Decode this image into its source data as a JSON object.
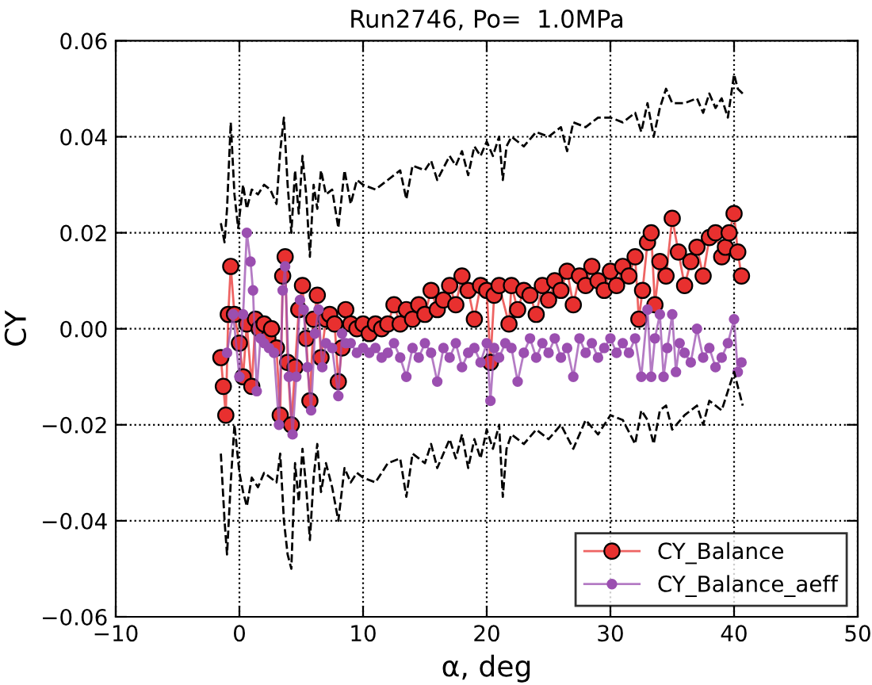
{
  "chart_data": {
    "type": "line",
    "title": "Run2746, Po=  1.0MPa",
    "xlabel": "α, deg",
    "ylabel": "CY",
    "xlim": [
      -10,
      50
    ],
    "xticks": [
      {
        "value": -10,
        "label": "−10"
      },
      0,
      10,
      20,
      30,
      40,
      50
    ],
    "ylim": [
      -0.06,
      0.06
    ],
    "yticks": [
      {
        "value": -0.06,
        "label": "−0.06"
      },
      {
        "value": -0.04,
        "label": "−0.04"
      },
      {
        "value": -0.02,
        "label": "−0.02"
      },
      {
        "value": 0,
        "label": "0.00"
      },
      {
        "value": 0.02,
        "label": "0.02"
      },
      {
        "value": 0.04,
        "label": "0.04"
      },
      {
        "value": 0.06,
        "label": "0.06"
      }
    ],
    "grid": true,
    "legend": "bottom right",
    "series": [
      {
        "name": "CY_Balance",
        "color": "#e8302f",
        "marker": "circle",
        "line_style": "solid",
        "x": [
          -1.5,
          -1.3,
          -1.1,
          -0.9,
          -0.7,
          -0.4,
          0,
          0.3,
          0.6,
          1.0,
          1.3,
          1.6,
          2.0,
          2.3,
          2.6,
          3.0,
          3.3,
          3.5,
          3.7,
          3.9,
          4.2,
          4.5,
          4.8,
          5.1,
          5.4,
          5.7,
          6.0,
          6.3,
          6.6,
          7.0,
          7.3,
          7.7,
          8.0,
          8.3,
          8.6,
          9.0,
          9.5,
          10,
          10.5,
          11,
          11.5,
          12,
          12.5,
          13,
          13.5,
          14,
          14.5,
          15,
          15.5,
          16,
          16.5,
          17,
          17.5,
          18,
          18.5,
          19,
          19.5,
          20,
          20.3,
          20.6,
          21,
          21.8,
          22,
          22.5,
          23,
          23.5,
          24,
          24.5,
          25,
          25.5,
          26,
          26.5,
          27,
          27.5,
          28,
          28.5,
          29,
          29.5,
          30,
          30.5,
          31,
          31.5,
          32,
          32.3,
          32.6,
          33,
          33.3,
          33.6,
          34,
          34.5,
          35,
          35.5,
          36,
          36.5,
          37,
          37.5,
          38,
          38.5,
          39,
          39.3,
          39.6,
          40,
          40.3,
          40.6
        ],
        "values": [
          -0.006,
          -0.012,
          -0.018,
          0.003,
          0.013,
          0.003,
          -0.003,
          -0.01,
          0.001,
          -0.012,
          0.002,
          0.0,
          0.001,
          -0.002,
          0.0,
          -0.004,
          -0.018,
          0.011,
          0.015,
          -0.007,
          -0.02,
          -0.008,
          0.004,
          0.009,
          -0.002,
          -0.015,
          0.002,
          0.007,
          -0.006,
          0.002,
          0.003,
          0.001,
          -0.011,
          -0.004,
          0.004,
          0.001,
          0.0,
          0.001,
          -0.001,
          0.001,
          0.0,
          0.001,
          0.005,
          0.001,
          0.004,
          0.002,
          0.005,
          0.003,
          0.008,
          0.004,
          0.006,
          0.009,
          0.005,
          0.011,
          0.008,
          0.002,
          0.009,
          0.008,
          -0.007,
          0.007,
          0.009,
          0.001,
          0.009,
          0.004,
          0.008,
          0.007,
          0.003,
          0.009,
          0.006,
          0.01,
          0.008,
          0.012,
          0.005,
          0.011,
          0.009,
          0.013,
          0.01,
          0.008,
          0.012,
          0.009,
          0.013,
          0.011,
          0.015,
          0.002,
          0.008,
          0.018,
          0.02,
          0.005,
          0.014,
          0.011,
          0.023,
          0.016,
          0.009,
          0.014,
          0.017,
          0.011,
          0.019,
          0.02,
          0.015,
          0.017,
          0.02,
          0.024,
          0.016,
          0.011
        ]
      },
      {
        "name": "CY_Balance_aeff",
        "color": "#9b4fb0",
        "marker": "circle",
        "line_style": "solid",
        "x": [
          -1.0,
          -0.5,
          0,
          0.3,
          0.6,
          0.9,
          1.1,
          1.4,
          1.7,
          2.0,
          2.4,
          2.8,
          3.2,
          3.5,
          3.7,
          4.0,
          4.3,
          4.6,
          4.9,
          5.2,
          5.5,
          5.8,
          6.1,
          6.4,
          6.7,
          7.0,
          7.5,
          8.0,
          8.3,
          8.6,
          9,
          9.5,
          10,
          10.5,
          11,
          11.5,
          12,
          12.5,
          13,
          13.5,
          14,
          14.5,
          15,
          15.5,
          16,
          16.5,
          17,
          17.5,
          18,
          18.5,
          19,
          19.5,
          20,
          20.3,
          20.6,
          21,
          21.5,
          22,
          22.5,
          23,
          23.5,
          24,
          24.5,
          25,
          25.5,
          26,
          26.5,
          27,
          27.5,
          28,
          28.5,
          29,
          29.5,
          30,
          30.5,
          31,
          31.5,
          32,
          32.5,
          33,
          33.3,
          33.6,
          34,
          34.3,
          34.6,
          35,
          35.3,
          35.6,
          36,
          36.5,
          37,
          37.5,
          38,
          38.5,
          39,
          39.5,
          40,
          40.3,
          40.6
        ],
        "values": [
          -0.005,
          0.003,
          -0.01,
          0.003,
          0.02,
          0.014,
          0.008,
          -0.013,
          -0.002,
          -0.003,
          -0.004,
          -0.005,
          -0.02,
          0.008,
          0.013,
          -0.01,
          -0.022,
          -0.01,
          0.006,
          0.004,
          -0.008,
          -0.017,
          -0.001,
          0.004,
          -0.008,
          -0.003,
          -0.004,
          -0.014,
          -0.001,
          -0.003,
          -0.003,
          -0.005,
          -0.004,
          -0.005,
          -0.004,
          -0.006,
          -0.005,
          -0.003,
          -0.006,
          -0.01,
          -0.004,
          -0.006,
          -0.003,
          -0.005,
          -0.011,
          -0.004,
          -0.006,
          -0.003,
          -0.008,
          -0.005,
          -0.004,
          -0.007,
          -0.003,
          -0.015,
          -0.004,
          -0.006,
          -0.003,
          -0.004,
          -0.011,
          -0.005,
          -0.002,
          -0.006,
          -0.003,
          -0.005,
          -0.002,
          -0.006,
          -0.004,
          -0.01,
          -0.002,
          -0.005,
          -0.003,
          -0.006,
          -0.004,
          -0.002,
          -0.005,
          -0.003,
          -0.005,
          -0.002,
          -0.01,
          0.004,
          -0.01,
          -0.002,
          0.003,
          -0.01,
          -0.004,
          0.003,
          -0.009,
          -0.003,
          -0.005,
          -0.007,
          0.0,
          -0.006,
          -0.004,
          -0.008,
          -0.006,
          -0.003,
          0.002,
          -0.009,
          -0.007
        ]
      },
      {
        "color": "#000000",
        "marker": "none",
        "line_style": "dashed",
        "x": [
          -1.5,
          -1.2,
          -1,
          -0.7,
          -0.4,
          -0.1,
          0.3,
          0.6,
          1.0,
          1.5,
          2,
          2.5,
          3,
          3.3,
          3.6,
          3.9,
          4.2,
          4.5,
          4.8,
          5.1,
          5.4,
          5.7,
          6,
          6.3,
          6.6,
          7,
          7.5,
          8,
          8.5,
          9,
          9.5,
          10,
          11,
          12,
          13,
          13.5,
          14,
          15,
          15.5,
          16,
          17,
          17.5,
          18,
          18.5,
          19,
          19.5,
          20,
          20.5,
          21,
          21.3,
          21.6,
          22,
          23,
          24,
          25,
          26,
          26.5,
          27,
          28,
          29,
          30,
          31,
          32,
          32.5,
          33,
          33.5,
          34,
          34.5,
          35,
          36,
          37,
          37.5,
          38,
          38.5,
          39,
          39.5,
          40,
          40.3,
          40.7
        ],
        "values": [
          0.022,
          0.018,
          0.025,
          0.043,
          0.028,
          0.021,
          0.03,
          0.025,
          0.029,
          0.028,
          0.03,
          0.029,
          0.026,
          0.037,
          0.044,
          0.03,
          0.02,
          0.033,
          0.024,
          0.036,
          0.028,
          0.015,
          0.03,
          0.025,
          0.033,
          0.028,
          0.029,
          0.021,
          0.033,
          0.026,
          0.031,
          0.03,
          0.029,
          0.031,
          0.033,
          0.027,
          0.034,
          0.033,
          0.035,
          0.031,
          0.036,
          0.034,
          0.037,
          0.032,
          0.038,
          0.036,
          0.039,
          0.036,
          0.04,
          0.031,
          0.038,
          0.04,
          0.038,
          0.041,
          0.04,
          0.042,
          0.037,
          0.043,
          0.042,
          0.044,
          0.044,
          0.043,
          0.045,
          0.041,
          0.047,
          0.04,
          0.046,
          0.05,
          0.047,
          0.047,
          0.048,
          0.045,
          0.049,
          0.046,
          0.048,
          0.044,
          0.053,
          0.05,
          0.049
        ]
      },
      {
        "color": "#000000",
        "marker": "none",
        "line_style": "dashed",
        "x": [
          -1.5,
          -1.2,
          -1,
          -0.7,
          -0.4,
          0,
          0.3,
          0.6,
          1.0,
          1.5,
          2,
          2.5,
          3,
          3.3,
          3.6,
          3.9,
          4.2,
          4.5,
          4.8,
          5.1,
          5.4,
          5.7,
          6,
          6.3,
          6.6,
          7,
          7.5,
          8,
          8.5,
          9,
          9.5,
          10,
          11,
          12,
          13,
          13.5,
          14,
          15,
          15.5,
          16,
          17,
          17.5,
          18,
          18.5,
          19,
          19.5,
          20,
          20.5,
          21,
          21.3,
          21.6,
          22,
          23,
          24,
          25,
          26,
          27,
          28,
          29,
          30,
          31,
          32,
          32.5,
          33,
          33.5,
          34,
          34.5,
          35,
          36,
          37,
          37.5,
          38,
          39,
          39.5,
          40,
          40.3,
          40.7
        ],
        "values": [
          -0.026,
          -0.04,
          -0.047,
          -0.032,
          -0.02,
          -0.03,
          -0.034,
          -0.037,
          -0.031,
          -0.033,
          -0.03,
          -0.031,
          -0.032,
          -0.026,
          -0.04,
          -0.047,
          -0.05,
          -0.028,
          -0.036,
          -0.025,
          -0.033,
          -0.044,
          -0.031,
          -0.024,
          -0.034,
          -0.028,
          -0.033,
          -0.04,
          -0.029,
          -0.032,
          -0.03,
          -0.031,
          -0.032,
          -0.028,
          -0.027,
          -0.035,
          -0.026,
          -0.028,
          -0.024,
          -0.029,
          -0.023,
          -0.027,
          -0.022,
          -0.029,
          -0.023,
          -0.027,
          -0.021,
          -0.025,
          -0.02,
          -0.035,
          -0.025,
          -0.022,
          -0.024,
          -0.021,
          -0.023,
          -0.02,
          -0.025,
          -0.019,
          -0.022,
          -0.018,
          -0.019,
          -0.024,
          -0.017,
          -0.019,
          -0.024,
          -0.017,
          -0.016,
          -0.021,
          -0.018,
          -0.016,
          -0.02,
          -0.015,
          -0.017,
          -0.013,
          -0.009,
          -0.012,
          -0.016
        ]
      }
    ]
  }
}
